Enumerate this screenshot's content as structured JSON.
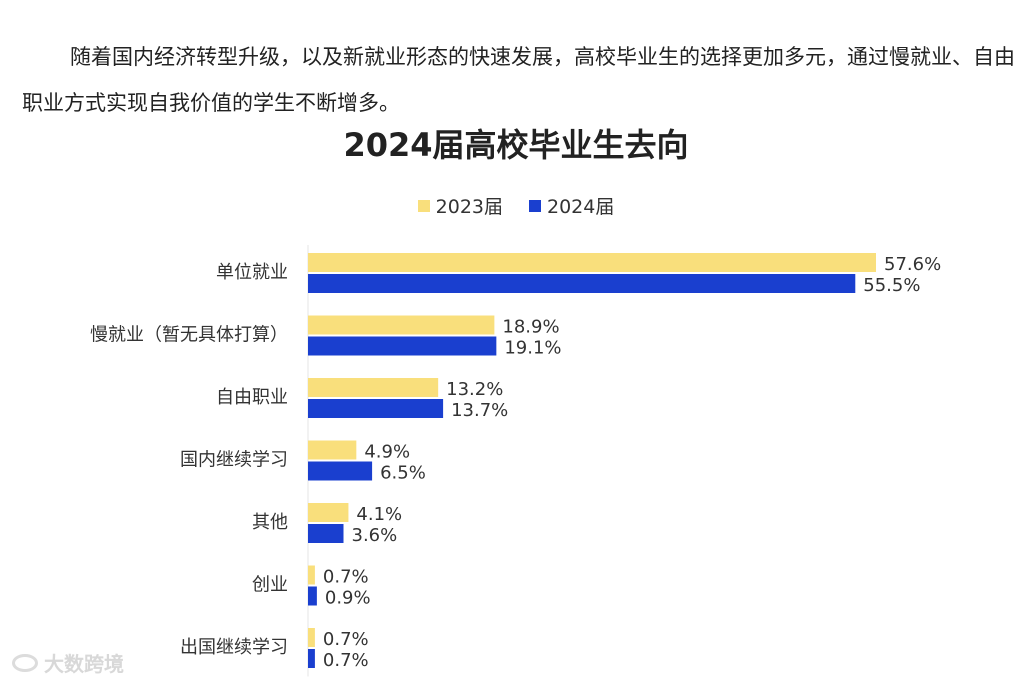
{
  "intro_text": "随着国内经济转型升级，以及新就业形态的快速发展，高校毕业生的选择更加多元，通过慢就业、自由职业方式实现自我价值的学生不断增多。",
  "watermark_text": "大数跨境",
  "chart_data": {
    "type": "bar",
    "orientation": "horizontal",
    "title": "2024届高校毕业生去向",
    "categories": [
      "单位就业",
      "慢就业（暂无具体打算）",
      "自由职业",
      "国内继续学习",
      "其他",
      "创业",
      "出国继续学习"
    ],
    "series": [
      {
        "name": "2023届",
        "color": "#f9df7c",
        "values": [
          57.6,
          18.9,
          13.2,
          4.9,
          4.1,
          0.7,
          0.7
        ],
        "labels": [
          "57.6%",
          "18.9%",
          "13.2%",
          "4.9%",
          "4.1%",
          "0.7%",
          "0.7%"
        ]
      },
      {
        "name": "2024届",
        "color": "#1a3fcf",
        "values": [
          55.5,
          19.1,
          13.7,
          6.5,
          3.6,
          0.9,
          0.7
        ],
        "labels": [
          "55.5%",
          "19.1%",
          "13.7%",
          "6.5%",
          "3.6%",
          "0.9%",
          "0.7%"
        ]
      }
    ],
    "legend_position": "top-center",
    "grid": false,
    "xlim": [
      0,
      60
    ]
  }
}
